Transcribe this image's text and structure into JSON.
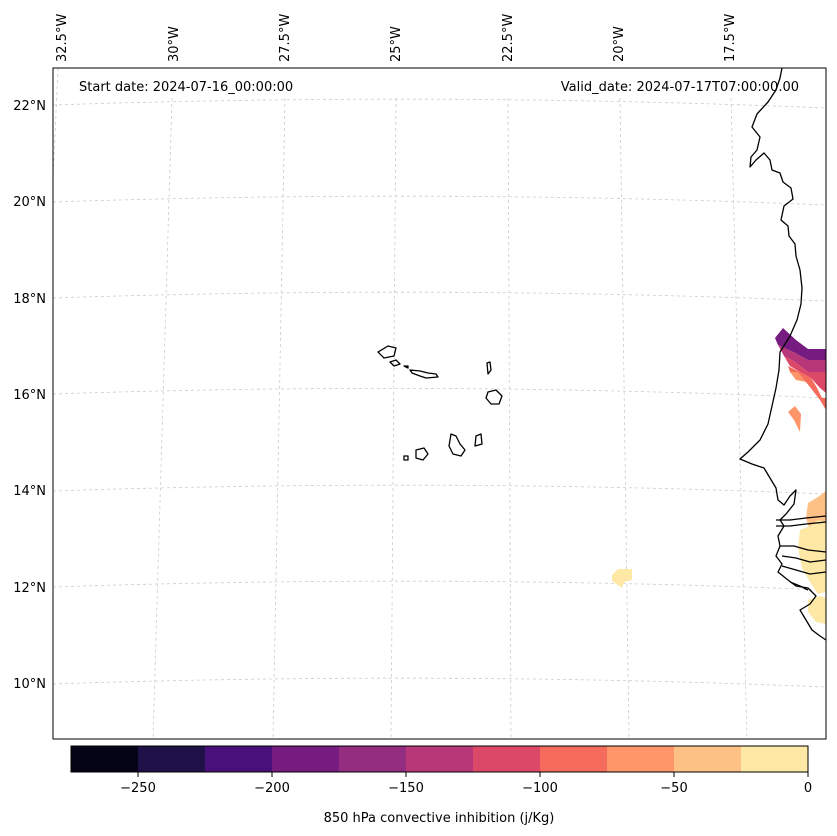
{
  "header": {
    "start_label": "Start date: 2024-07-16_00:00:00",
    "valid_label": "Valid_date: 2024-07-17T07:00:00.00"
  },
  "longitude_labels": [
    "32.5°W",
    "30°W",
    "27.5°W",
    "25°W",
    "22.5°W",
    "20°W",
    "17.5°W"
  ],
  "latitude_labels": [
    "22°N",
    "20°N",
    "18°N",
    "16°N",
    "14°N",
    "12°N",
    "10°N"
  ],
  "colorbar": {
    "label": "850 hPa convective inhibition (j/Kg)",
    "range": [
      -275,
      0
    ],
    "tick_values": [
      -250,
      -200,
      -150,
      -100,
      -50,
      0
    ],
    "tick_labels": [
      "−250",
      "−200",
      "−150",
      "−100",
      "−50",
      "0"
    ],
    "colors": [
      "#050416",
      "#1f1147",
      "#4a1079",
      "#761c80",
      "#942c80",
      "#b73779",
      "#dc4868",
      "#f56b5c",
      "#fe9669",
      "#fec185",
      "#fde8a5"
    ]
  },
  "colors": {
    "coastline": "#000000",
    "gridline": "#cccccc",
    "frame": "#000000"
  }
}
